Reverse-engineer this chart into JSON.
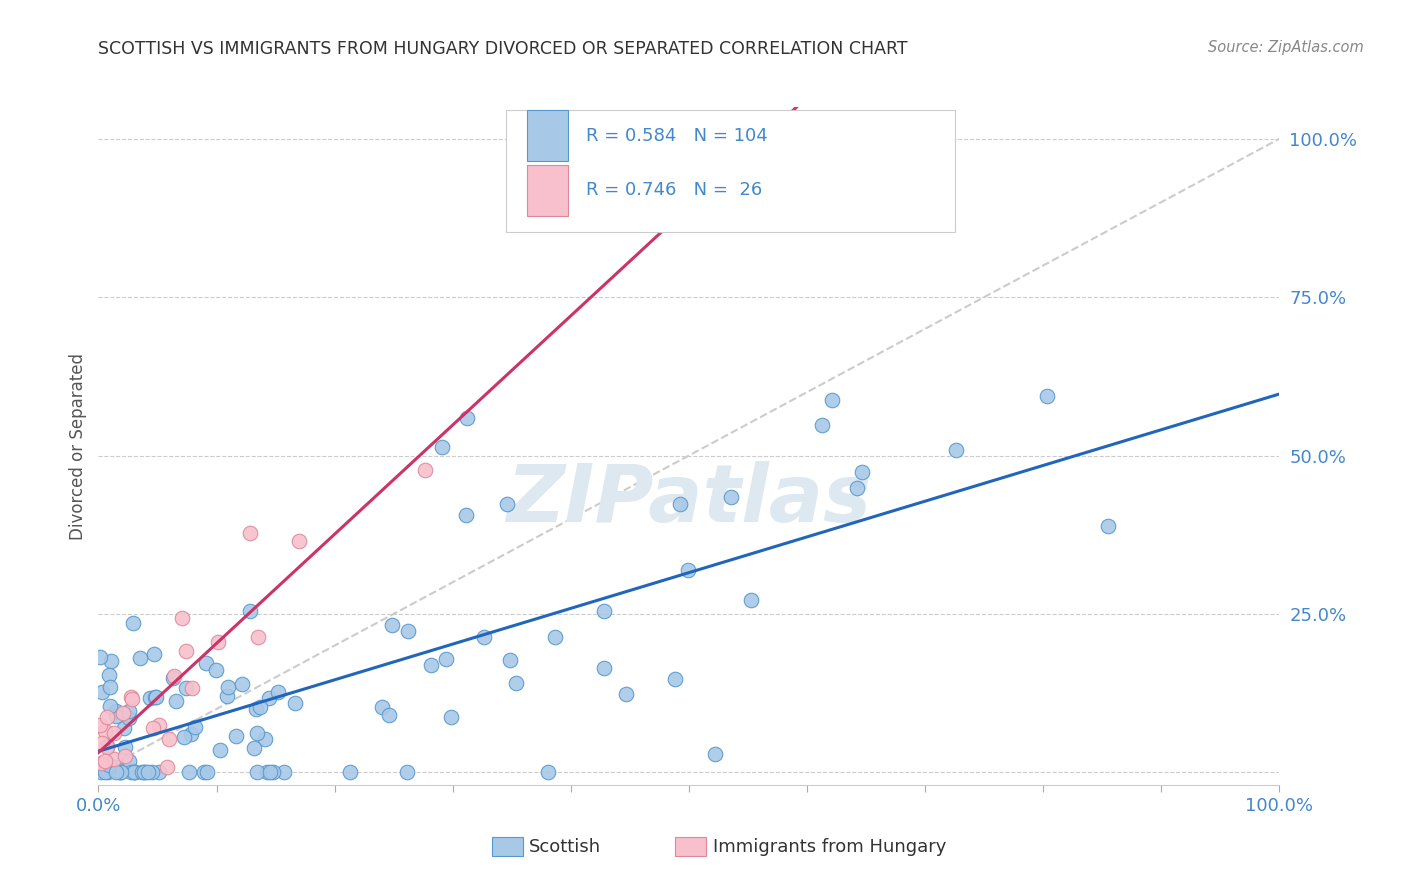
{
  "title": "SCOTTISH VS IMMIGRANTS FROM HUNGARY DIVORCED OR SEPARATED CORRELATION CHART",
  "source": "Source: ZipAtlas.com",
  "ylabel": "Divorced or Separated",
  "xlim": [
    0.0,
    1.0
  ],
  "ylim": [
    -0.02,
    1.05
  ],
  "ytick_vals": [
    0.0,
    0.25,
    0.5,
    0.75,
    1.0
  ],
  "ytick_labels": [
    "",
    "25.0%",
    "50.0%",
    "75.0%",
    "100.0%"
  ],
  "xtick_vals": [
    0.0,
    0.1,
    0.2,
    0.3,
    0.4,
    0.5,
    0.6,
    0.7,
    0.8,
    0.9,
    1.0
  ],
  "blue_scatter_color": "#a8c8e8",
  "blue_scatter_edge": "#5599cc",
  "pink_scatter_color": "#f8c0cc",
  "pink_scatter_edge": "#dd8899",
  "blue_line_color": "#2266bb",
  "pink_line_color": "#cc3366",
  "dashed_line_color": "#cccccc",
  "grid_color": "#cccccc",
  "watermark": "ZIPatlas",
  "watermark_color": "#dde8f0",
  "background_color": "#ffffff",
  "title_color": "#333333",
  "axis_tick_color": "#4488cc",
  "legend_text_color": "#4488cc",
  "legend_label_color": "#333333",
  "source_color": "#888888",
  "ylabel_color": "#555555",
  "legend1_R": "0.584",
  "legend1_N": "104",
  "legend2_R": "0.746",
  "legend2_N": "26",
  "bottom_legend1": "Scottish",
  "bottom_legend2": "Immigrants from Hungary"
}
